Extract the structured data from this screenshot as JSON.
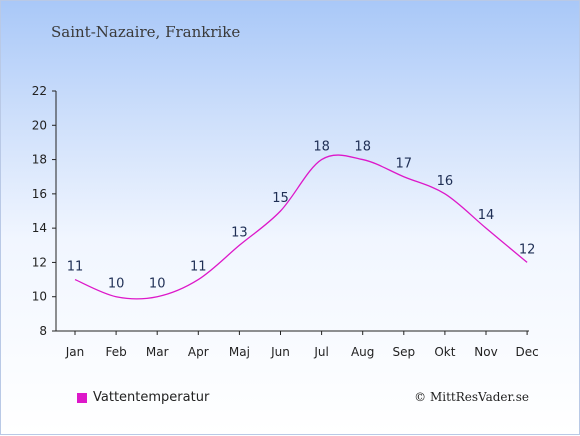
{
  "header": {
    "title": "Saint-Nazaire, Frankrike"
  },
  "footer": {
    "credit": "© MittResVader.se"
  },
  "chart_data": {
    "type": "line",
    "categories": [
      "Jan",
      "Feb",
      "Mar",
      "Apr",
      "Maj",
      "Jun",
      "Jul",
      "Aug",
      "Sep",
      "Okt",
      "Nov",
      "Dec"
    ],
    "series": [
      {
        "name": "Vattentemperatur",
        "color": "#dd18c9",
        "values": [
          11,
          10,
          10,
          11,
          13,
          15,
          18,
          18,
          17,
          16,
          14,
          12
        ]
      }
    ],
    "ylim": [
      8,
      22
    ],
    "yticks": [
      8,
      10,
      12,
      14,
      16,
      18,
      20,
      22
    ],
    "grid": false,
    "legend": "bottom-left"
  }
}
